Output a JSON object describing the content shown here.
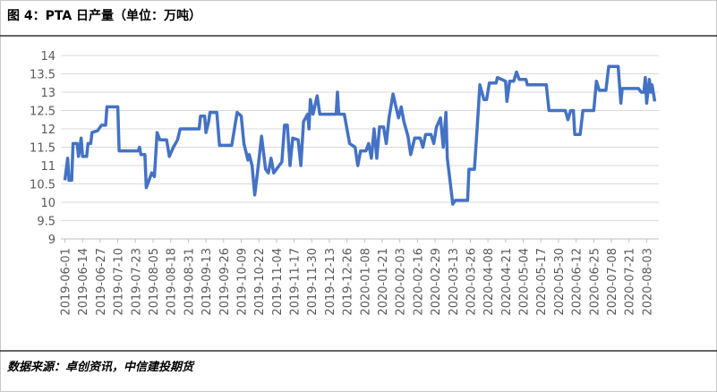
{
  "chart_data": {
    "type": "line",
    "title": "图 4：PTA 日产量（单位：万吨）",
    "source": "数据来源：卓创资讯，中信建投期货",
    "series": [
      {
        "color": "#4472c4",
        "x": [
          "2019-06-01",
          "2019-06-03",
          "2019-06-04",
          "2019-06-06",
          "2019-06-07",
          "2019-06-10",
          "2019-06-11",
          "2019-06-13",
          "2019-06-14",
          "2019-06-17",
          "2019-06-18",
          "2019-06-20",
          "2019-06-21",
          "2019-06-25",
          "2019-06-28",
          "2019-07-01",
          "2019-07-02",
          "2019-07-10",
          "2019-07-11",
          "2019-07-25",
          "2019-07-26",
          "2019-07-27",
          "2019-07-30",
          "2019-07-31",
          "2019-08-02",
          "2019-08-04",
          "2019-08-06",
          "2019-08-08",
          "2019-08-10",
          "2019-08-15",
          "2019-08-17",
          "2019-08-20",
          "2019-08-23",
          "2019-08-25",
          "2019-09-08",
          "2019-09-09",
          "2019-09-12",
          "2019-09-13",
          "2019-09-15",
          "2019-09-16",
          "2019-09-21",
          "2019-09-23",
          "2019-10-02",
          "2019-10-04",
          "2019-10-06",
          "2019-10-09",
          "2019-10-11",
          "2019-10-14",
          "2019-10-15",
          "2019-10-17",
          "2019-10-19",
          "2019-10-21",
          "2019-10-24",
          "2019-10-27",
          "2019-10-29",
          "2019-10-31",
          "2019-11-02",
          "2019-11-06",
          "2019-11-08",
          "2019-11-10",
          "2019-11-12",
          "2019-11-14",
          "2019-11-16",
          "2019-11-20",
          "2019-11-22",
          "2019-11-24",
          "2019-11-27",
          "2019-11-28",
          "2019-11-29",
          "2019-12-01",
          "2019-12-04",
          "2019-12-06",
          "2019-12-18",
          "2019-12-19",
          "2019-12-20",
          "2019-12-24",
          "2019-12-26",
          "2019-12-28",
          "2020-01-01",
          "2020-01-03",
          "2020-01-05",
          "2020-01-09",
          "2020-01-11",
          "2020-01-13",
          "2020-01-15",
          "2020-01-17",
          "2020-01-19",
          "2020-01-22",
          "2020-01-24",
          "2020-01-26",
          "2020-01-29",
          "2020-02-02",
          "2020-02-04",
          "2020-02-06",
          "2020-02-09",
          "2020-02-11",
          "2020-02-14",
          "2020-02-18",
          "2020-02-20",
          "2020-02-22",
          "2020-02-26",
          "2020-02-28",
          "2020-03-01",
          "2020-03-04",
          "2020-03-06",
          "2020-03-08",
          "2020-03-09",
          "2020-03-11",
          "2020-03-13",
          "2020-03-15",
          "2020-03-24",
          "2020-03-25",
          "2020-03-29",
          "2020-03-31",
          "2020-04-02",
          "2020-04-05",
          "2020-04-07",
          "2020-04-09",
          "2020-04-14",
          "2020-04-15",
          "2020-04-21",
          "2020-04-22",
          "2020-04-24",
          "2020-04-27",
          "2020-04-29",
          "2020-05-01",
          "2020-05-06",
          "2020-05-07",
          "2020-05-21",
          "2020-05-23",
          "2020-06-04",
          "2020-06-06",
          "2020-06-08",
          "2020-06-10",
          "2020-06-11",
          "2020-06-15",
          "2020-06-17",
          "2020-06-25",
          "2020-06-27",
          "2020-06-29",
          "2020-07-04",
          "2020-07-06",
          "2020-07-13",
          "2020-07-15",
          "2020-07-16",
          "2020-07-28",
          "2020-07-30",
          "2020-08-01",
          "2020-08-02",
          "2020-08-03",
          "2020-08-05",
          "2020-08-06",
          "2020-08-07",
          "2020-08-09"
        ],
        "values": [
          10.6,
          11.2,
          10.6,
          10.6,
          11.6,
          11.6,
          11.25,
          11.75,
          11.25,
          11.25,
          11.6,
          11.6,
          11.9,
          11.95,
          12.1,
          12.1,
          12.6,
          12.6,
          11.4,
          11.4,
          11.5,
          11.3,
          11.3,
          10.4,
          10.6,
          10.8,
          10.7,
          11.9,
          11.7,
          11.7,
          11.25,
          11.5,
          11.7,
          12.0,
          12.0,
          12.35,
          12.35,
          11.9,
          12.2,
          12.45,
          12.45,
          11.55,
          11.55,
          12.0,
          12.45,
          12.35,
          11.6,
          11.15,
          11.3,
          11.0,
          10.2,
          10.8,
          11.8,
          10.9,
          10.8,
          11.2,
          10.8,
          11.0,
          11.1,
          12.1,
          12.1,
          11.0,
          11.75,
          11.7,
          11.0,
          12.2,
          12.4,
          12.0,
          12.8,
          12.4,
          12.9,
          12.4,
          12.4,
          13.0,
          12.4,
          12.4,
          12.0,
          11.6,
          11.5,
          11.0,
          11.4,
          11.4,
          11.6,
          11.2,
          12.0,
          11.2,
          12.05,
          12.05,
          11.6,
          12.3,
          12.95,
          12.3,
          12.6,
          12.2,
          11.8,
          11.3,
          11.75,
          11.75,
          11.5,
          11.85,
          11.85,
          11.6,
          12.05,
          12.3,
          11.5,
          12.45,
          11.2,
          10.6,
          9.95,
          10.05,
          10.05,
          10.9,
          10.9,
          12.0,
          13.2,
          12.8,
          12.8,
          13.25,
          13.25,
          13.4,
          13.3,
          12.75,
          13.3,
          13.3,
          13.55,
          13.35,
          13.35,
          13.2,
          13.2,
          12.5,
          12.5,
          12.25,
          12.5,
          12.5,
          11.85,
          11.85,
          12.5,
          12.5,
          13.3,
          13.05,
          13.05,
          13.7,
          13.7,
          12.7,
          13.1,
          13.1,
          13.0,
          13.0,
          13.4,
          12.7,
          13.35,
          13.0,
          13.2,
          12.75
        ]
      }
    ],
    "xlim": [
      "2019-05-29",
      "2020-08-12"
    ],
    "xticks": [
      "2019-06-01",
      "2019-06-14",
      "2019-06-27",
      "2019-07-10",
      "2019-07-23",
      "2019-08-05",
      "2019-08-18",
      "2019-08-31",
      "2019-09-13",
      "2019-09-26",
      "2019-10-09",
      "2019-10-22",
      "2019-11-04",
      "2019-11-17",
      "2019-11-30",
      "2019-12-13",
      "2019-12-26",
      "2020-01-08",
      "2020-01-21",
      "2020-02-03",
      "2020-02-16",
      "2020-02-29",
      "2020-03-13",
      "2020-03-26",
      "2020-04-08",
      "2020-04-21",
      "2020-05-04",
      "2020-05-17",
      "2020-05-30",
      "2020-06-12",
      "2020-06-25",
      "2020-07-08",
      "2020-07-21",
      "2020-08-03"
    ],
    "ylim": [
      9,
      14
    ],
    "yticks": [
      9,
      9.5,
      10,
      10.5,
      11,
      11.5,
      12,
      12.5,
      13,
      13.5,
      14
    ],
    "grid": true
  }
}
